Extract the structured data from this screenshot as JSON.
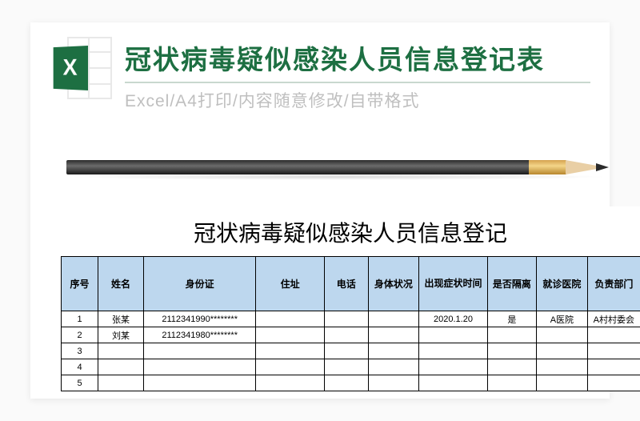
{
  "header": {
    "title": "冠状病毒疑似感染人员信息登记表",
    "subtitle": "Excel/A4打印/内容随意修改/自带格式",
    "icon_letter": "X"
  },
  "sheet": {
    "title": "冠状病毒疑似感染人员信息登记",
    "columns": [
      "序号",
      "姓名",
      "身份证",
      "住址",
      "电话",
      "身体状况",
      "出现症状时间",
      "是否隔离",
      "就诊医院",
      "负责部门"
    ],
    "rows": [
      [
        "1",
        "张某",
        "2112341990********",
        "",
        "",
        "",
        "2020.1.20",
        "是",
        "A医院",
        "A村村委会"
      ],
      [
        "2",
        "刘某",
        "2112341980********",
        "",
        "",
        "",
        "",
        "",
        "",
        ""
      ],
      [
        "3",
        "",
        "",
        "",
        "",
        "",
        "",
        "",
        "",
        ""
      ],
      [
        "4",
        "",
        "",
        "",
        "",
        "",
        "",
        "",
        "",
        ""
      ],
      [
        "5",
        "",
        "",
        "",
        "",
        "",
        "",
        "",
        "",
        ""
      ]
    ]
  },
  "colors": {
    "excel_green": "#1d6f42",
    "header_bg": "#bdd7ee",
    "border": "#000000",
    "subtitle_gray": "#bfbfbf"
  }
}
